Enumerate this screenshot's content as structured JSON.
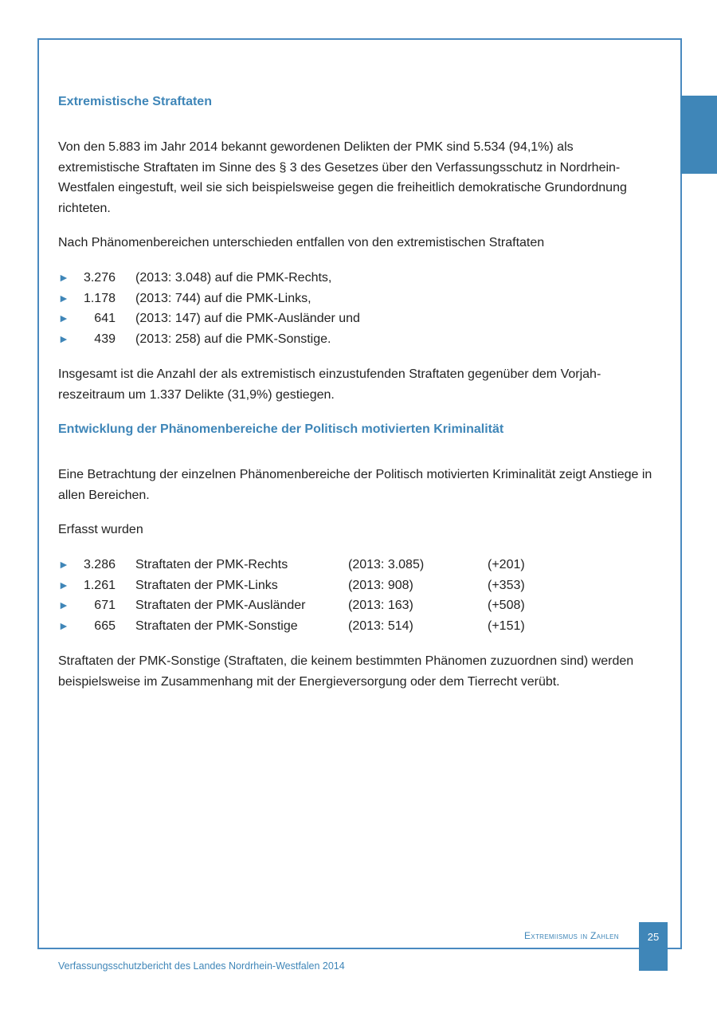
{
  "heading1": "Extremistische Straftaten",
  "para1": "Von den 5.883 im Jahr 2014 bekannt gewordenen Delikten der PMK sind 5.534 (94,1%) als extremistische Straftaten im Sinne des § 3 des Gesetzes über den Verfassungsschutz in Nordrhein-Westfalen eingestuft, weil sie sich beispielsweise gegen die freiheitlich demokratische Grundordnung richteten.",
  "para2": "Nach Phänomenbereichen unterschieden entfallen von den extremistischen Straftaten",
  "list1": [
    {
      "num": "3.276",
      "text": "(2013: 3.048) auf die PMK-Rechts,"
    },
    {
      "num": "1.178",
      "text": "(2013: 744) auf die PMK-Links,"
    },
    {
      "num": "641",
      "text": "(2013: 147) auf die PMK-Ausländer und"
    },
    {
      "num": "439",
      "text": "(2013: 258) auf die PMK-Sonstige."
    }
  ],
  "para3": "Insgesamt ist die Anzahl der als extremistisch einzustufenden Straftaten gegenüber dem Vorjah-reszeitraum um 1.337 Delikte (31,9%) gestiegen.",
  "heading2": "Entwicklung der Phänomenbereiche der Politisch motivierten Kriminalität",
  "para4": "Eine Betrachtung der einzelnen Phänomenbereiche der Politisch motivierten Kriminalität zeigt Anstiege in allen Bereichen.",
  "para5": "Erfasst wurden",
  "list2": [
    {
      "num": "3.286",
      "label": "Straftaten der PMK-Rechts",
      "prev": "(2013: 3.085)",
      "diff": "(+201)"
    },
    {
      "num": "1.261",
      "label": "Straftaten der PMK-Links",
      "prev": "(2013: 908)",
      "diff": "(+353)"
    },
    {
      "num": "671",
      "label": "Straftaten der PMK-Ausländer",
      "prev": "(2013: 163)",
      "diff": "(+508)"
    },
    {
      "num": "665",
      "label": "Straftaten der PMK-Sonstige",
      "prev": "(2013: 514)",
      "diff": "(+151)"
    }
  ],
  "para6": "Straftaten der PMK-Sonstige (Straftaten, die keinem bestimmten Phänomen zuzuordnen sind) werden beispielsweise im Zusammenhang mit der Energieversorgung oder dem Tierrecht verübt.",
  "footer": {
    "section": "Extremiismus in Zahlen",
    "page": "25",
    "publication": "Verfassungsschutzbericht des Landes Nordrhein-Westfalen 2014"
  },
  "bullet_icon": "triangle-right-icon",
  "accent_color": "#3f86b8"
}
